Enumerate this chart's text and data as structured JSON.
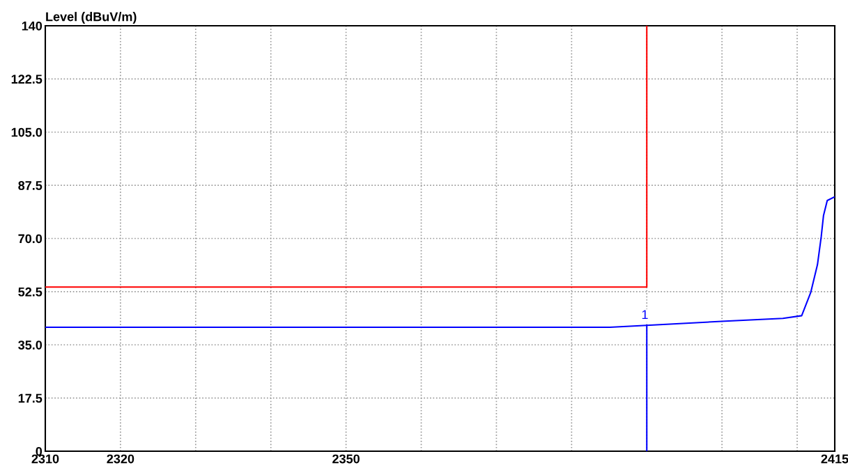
{
  "chart_data": {
    "type": "line",
    "ylabel": "Level (dBuV/m)",
    "series": [
      {
        "color": "#0000ff",
        "x": [
          2310,
          2320,
          2330,
          2340,
          2350,
          2360,
          2370,
          2380,
          2385.1,
          2390,
          2400.4,
          2408.1,
          2410.6,
          2411.8,
          2412.7,
          2413.2,
          2413.5,
          2414.0,
          2414.9
        ],
        "values": [
          40.8,
          40.8,
          40.8,
          40.8,
          40.8,
          40.8,
          40.8,
          40.8,
          40.8,
          41.4,
          42.8,
          43.7,
          44.6,
          52.2,
          61.4,
          70.6,
          77.5,
          82.5,
          83.6
        ]
      },
      {
        "color": "#ff0000",
        "x": [
          2310,
          2390,
          2390
        ],
        "values": [
          54,
          54,
          140
        ]
      }
    ],
    "annotations": [
      {
        "text": "1",
        "x": 2390,
        "y": 41.4
      }
    ],
    "xlim": [
      2310,
      2415
    ],
    "xticks": [
      2310,
      2320,
      {
        "value": 2330,
        "label": null
      },
      {
        "value": 2340,
        "label": null
      },
      2350,
      {
        "value": 2360,
        "label": null
      },
      {
        "value": 2370,
        "label": null
      },
      {
        "value": 2380,
        "label": null
      },
      {
        "value": 2390,
        "label": null
      },
      {
        "value": 2400,
        "label": null
      },
      {
        "value": 2410,
        "label": null
      },
      2415
    ],
    "ylim": [
      0,
      140
    ],
    "yticks": [
      0,
      {
        "value": 17.5,
        "label": "17.5"
      },
      {
        "value": 35,
        "label": "35.0"
      },
      {
        "value": 52.5,
        "label": "52.5"
      },
      {
        "value": 70,
        "label": "70.0"
      },
      {
        "value": 87.5,
        "label": "87.5"
      },
      {
        "value": 105,
        "label": "105.0"
      },
      {
        "value": 122.5,
        "label": "122.5"
      },
      140
    ],
    "grid": true,
    "legend": false,
    "marker": "none",
    "line_style": "solid"
  }
}
